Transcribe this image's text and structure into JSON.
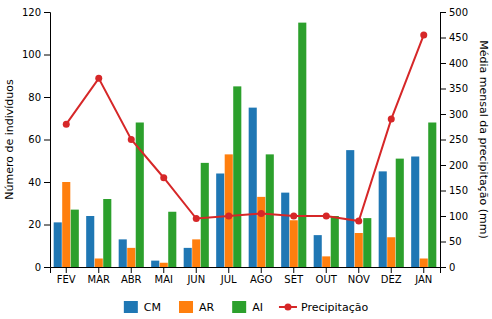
{
  "chart_data": {
    "type": "bar",
    "categories": [
      "FEV",
      "MAR",
      "ABR",
      "MAI",
      "JUN",
      "JUL",
      "AGO",
      "SET",
      "OUT",
      "NOV",
      "DEZ",
      "JAN"
    ],
    "series": [
      {
        "name": "CM",
        "values": [
          21,
          24,
          13,
          3,
          9,
          44,
          75,
          35,
          15,
          55,
          45,
          52
        ]
      },
      {
        "name": "AR",
        "values": [
          40,
          4,
          9,
          2,
          13,
          53,
          33,
          22,
          5,
          16,
          14,
          4
        ]
      },
      {
        "name": "AI",
        "values": [
          27,
          32,
          68,
          26,
          49,
          85,
          53,
          115,
          24,
          23,
          51,
          68
        ]
      },
      {
        "name": "Precipitação",
        "type": "line",
        "axis": "y2",
        "marker": "circle",
        "values": [
          280,
          370,
          250,
          175,
          95,
          100,
          105,
          100,
          100,
          90,
          290,
          455
        ]
      }
    ],
    "y_label": "Número de indivíduos",
    "y2_label": "Média mensal da precipitação (mm)",
    "ylim": [
      0,
      120
    ],
    "yticks": [
      0,
      20,
      40,
      60,
      80,
      100,
      120
    ],
    "y2lim": [
      0,
      500
    ],
    "y2ticks": [
      0,
      50,
      100,
      150,
      200,
      250,
      300,
      350,
      400,
      450,
      500
    ],
    "grid": false,
    "legend": "bottom"
  }
}
